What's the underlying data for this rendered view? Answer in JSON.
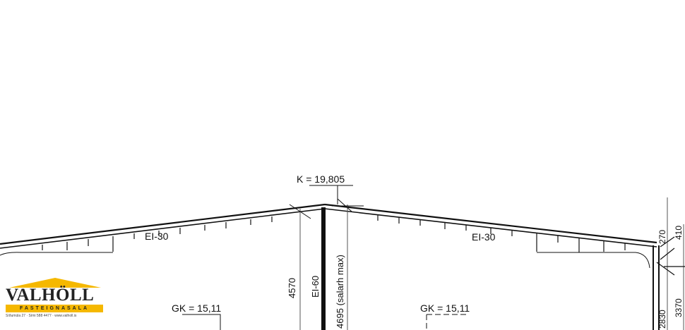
{
  "drawing": {
    "ridge_level": "K = 19,805",
    "roof_fire_rating_left": "EI-30",
    "roof_fire_rating_right": "EI-30",
    "wall_fire_rating": "EI-60",
    "dim_left": "4570",
    "dim_right": "4695 (salarh max)",
    "floor_level_left": "GK = 15,11",
    "floor_level_right": "GK = 15,11",
    "dim_edge_1": "270",
    "dim_edge_2": "410",
    "dim_edge_3": "3370",
    "dim_edge_4": "2830"
  },
  "logo": {
    "name": "VALHÖLL",
    "tagline": "FASTEIGNASALA",
    "address": "Síðumúla 27 · Sími 588 4477 · www.valholl.is",
    "color": "#f5b800"
  }
}
